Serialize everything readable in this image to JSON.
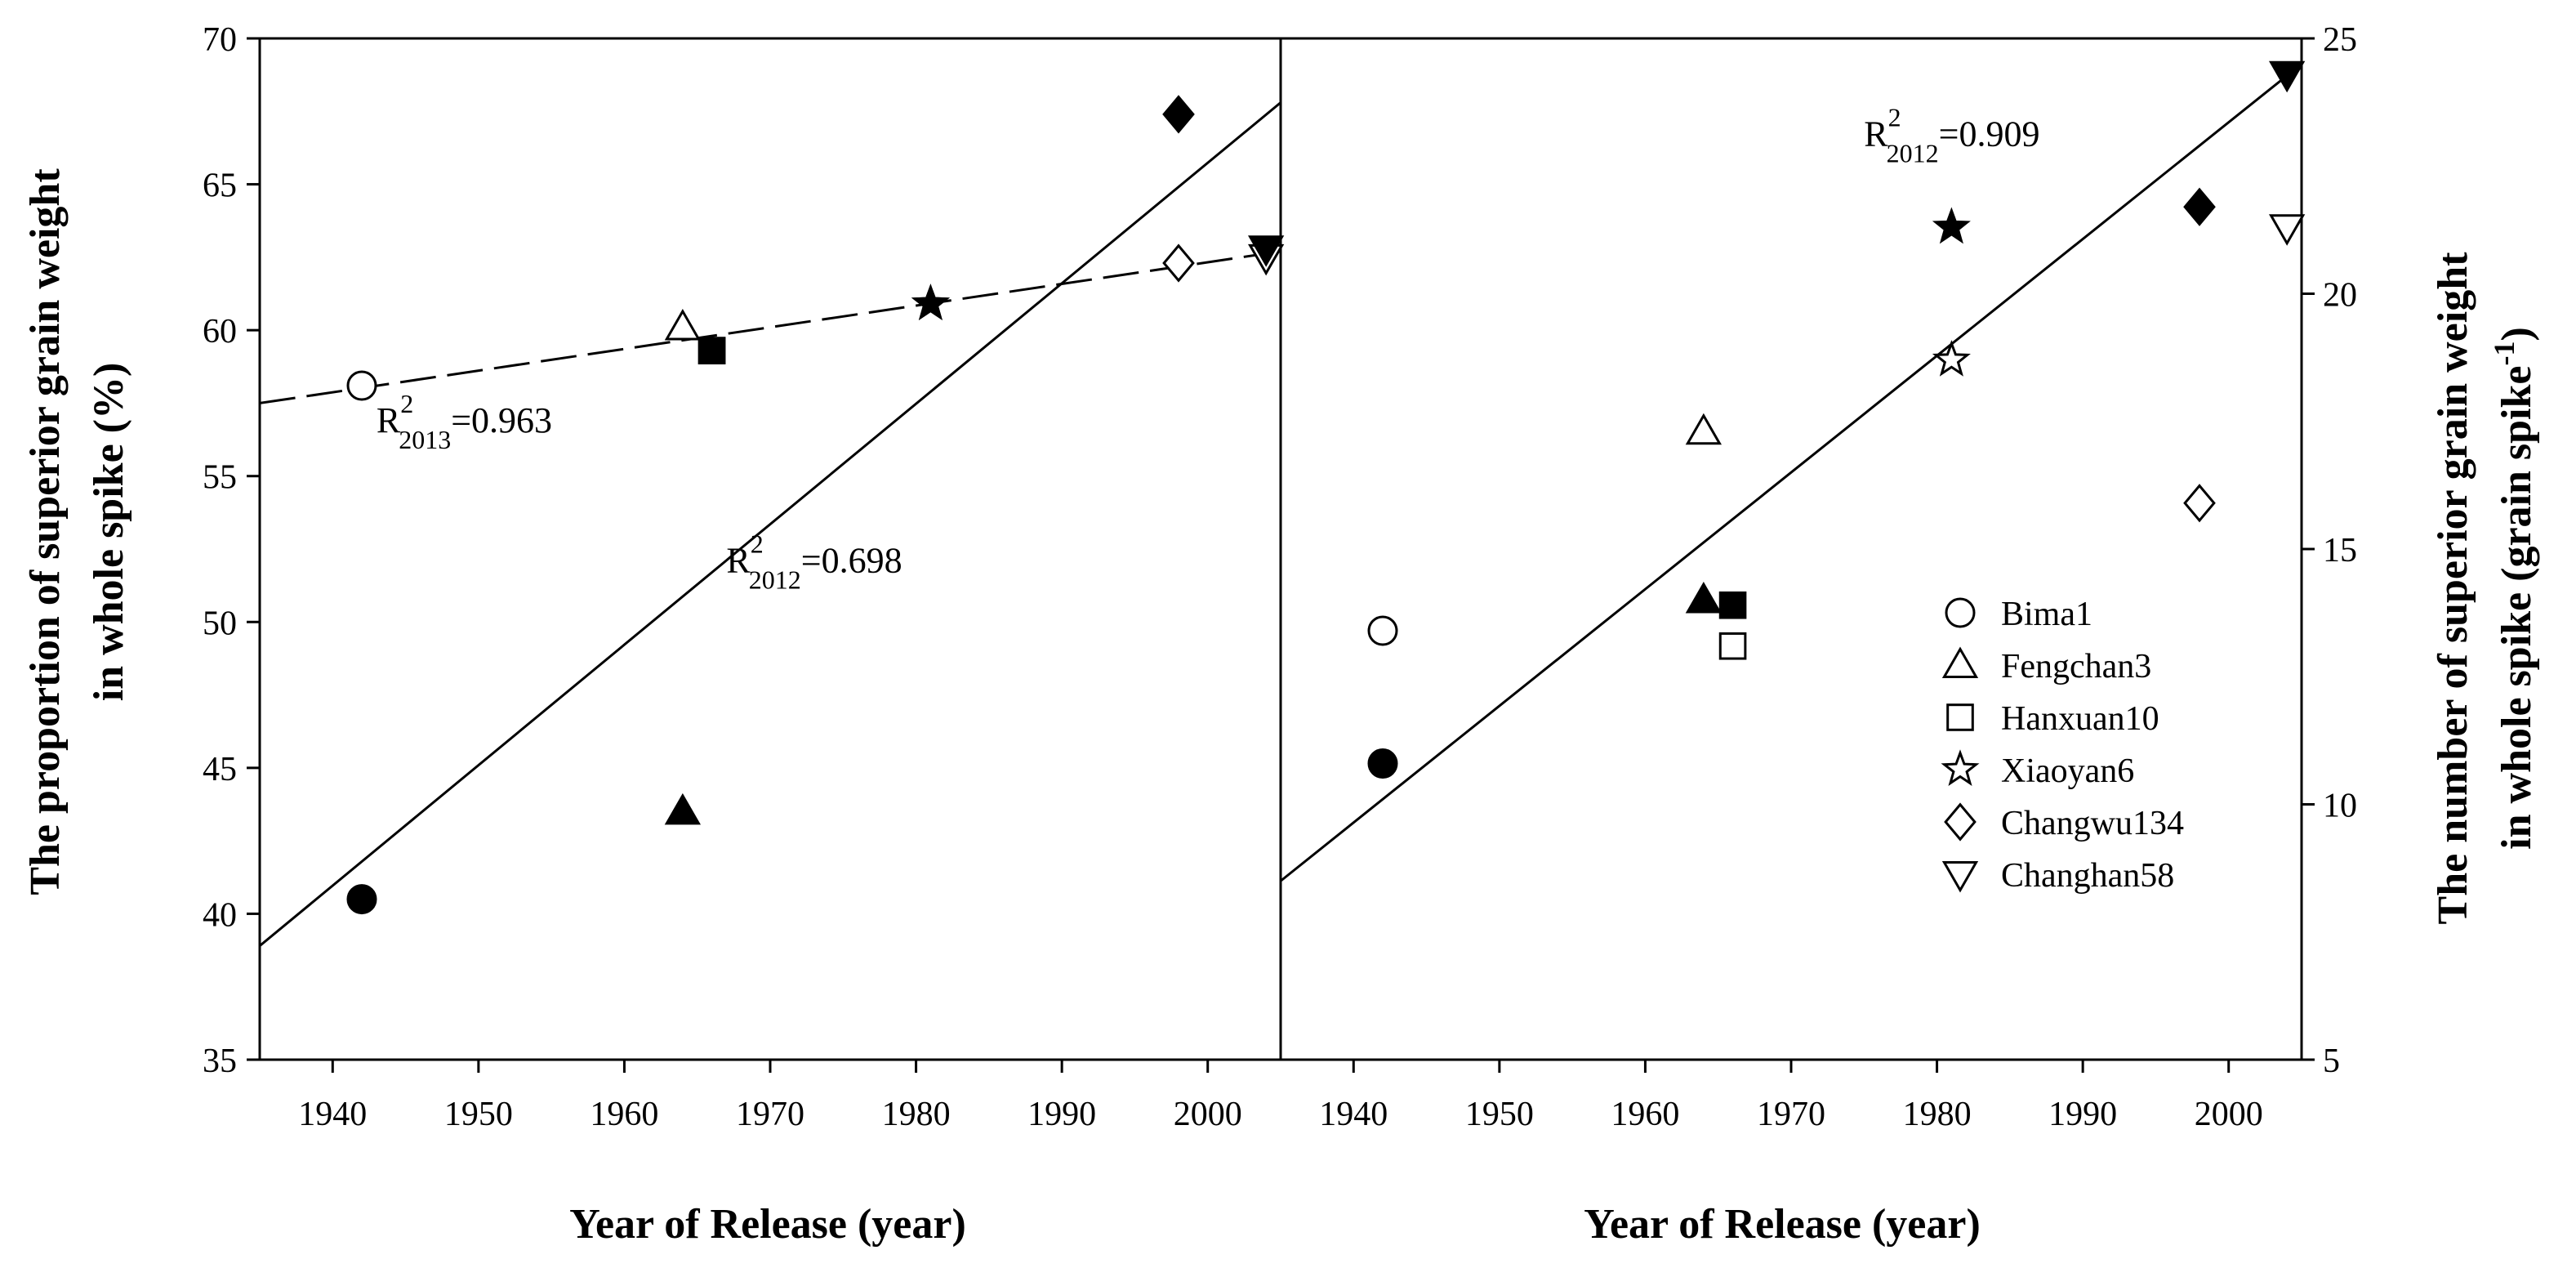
{
  "chart_data": [
    {
      "type": "scatter",
      "panel": "left",
      "xlabel": "Year of Release (year)",
      "ylabel_line1": "The proportion of superior grain weight",
      "ylabel_line2": "in whole spike (%)",
      "xlim": [
        1935,
        2005
      ],
      "ylim": [
        35,
        70
      ],
      "xticks": [
        "1940",
        "1950",
        "1960",
        "1970",
        "1980",
        "1990",
        "2000"
      ],
      "yticks": [
        "35",
        "40",
        "45",
        "50",
        "55",
        "60",
        "65",
        "70"
      ],
      "y_axis_side": "left",
      "series": [
        {
          "year": "2013",
          "fill": "open",
          "points": [
            {
              "cultivar": "Bima1",
              "marker": "circle",
              "x": 1942,
              "y": 58.1
            },
            {
              "cultivar": "Fengchan3",
              "marker": "triangle-up",
              "x": 1964,
              "y": 60.1
            },
            {
              "cultivar": "Hanxuan10",
              "marker": "square",
              "x": 1966,
              "y": 59.3
            },
            {
              "cultivar": "Xiaoyan6",
              "marker": "star",
              "x": 1981,
              "y": 60.9
            },
            {
              "cultivar": "Changwu134",
              "marker": "diamond",
              "x": 1998,
              "y": 62.3
            },
            {
              "cultivar": "Changhan58",
              "marker": "triangle-down",
              "x": 2004,
              "y": 62.5
            }
          ],
          "fit": {
            "style": "dashed",
            "x": [
              1935,
              2005
            ],
            "y": [
              57.5,
              62.7
            ]
          }
        },
        {
          "year": "2012",
          "fill": "solid",
          "points": [
            {
              "cultivar": "Bima1",
              "marker": "circle",
              "x": 1942,
              "y": 40.5
            },
            {
              "cultivar": "Fengchan3",
              "marker": "triangle-up",
              "x": 1964,
              "y": 43.5
            },
            {
              "cultivar": "Hanxuan10",
              "marker": "square",
              "x": 1966,
              "y": 59.3
            },
            {
              "cultivar": "Xiaoyan6",
              "marker": "star",
              "x": 1981,
              "y": 60.9
            },
            {
              "cultivar": "Changwu134",
              "marker": "diamond",
              "x": 1998,
              "y": 67.4
            },
            {
              "cultivar": "Changhan58",
              "marker": "triangle-down",
              "x": 2004,
              "y": 62.8
            }
          ],
          "fit": {
            "style": "solid",
            "x": [
              1935,
              2005
            ],
            "y": [
              38.9,
              67.8
            ]
          }
        }
      ],
      "annotations": [
        {
          "base": "R",
          "sup": "2",
          "sub": "2013",
          "value": "=0.963",
          "at": [
            1943,
            56.5
          ]
        },
        {
          "base": "R",
          "sup": "2",
          "sub": "2012",
          "value": "=0.698",
          "at": [
            1967,
            51.7
          ]
        }
      ]
    },
    {
      "type": "scatter",
      "panel": "right",
      "xlabel": "Year of Release (year)",
      "ylabel_line1": "The number of superior grain weight",
      "ylabel_line2_pre": "in whole spike (grain spike",
      "ylabel_line2_sup": "-1",
      "ylabel_line2_post": ")",
      "xlim": [
        1935,
        2005
      ],
      "ylim": [
        5,
        25
      ],
      "xticks": [
        "1940",
        "1950",
        "1960",
        "1970",
        "1980",
        "1990",
        "2000"
      ],
      "yticks": [
        "5",
        "10",
        "15",
        "20",
        "25"
      ],
      "y_axis_side": "right",
      "series": [
        {
          "year": "2013",
          "fill": "open",
          "points": [
            {
              "cultivar": "Bima1",
              "marker": "circle",
              "x": 1942,
              "y": 13.4
            },
            {
              "cultivar": "Fengchan3",
              "marker": "triangle-up",
              "x": 1964,
              "y": 17.3
            },
            {
              "cultivar": "Hanxuan10",
              "marker": "square",
              "x": 1966,
              "y": 13.1
            },
            {
              "cultivar": "Xiaoyan6",
              "marker": "star",
              "x": 1981,
              "y": 18.7
            },
            {
              "cultivar": "Changwu134",
              "marker": "diamond",
              "x": 1998,
              "y": 15.9
            },
            {
              "cultivar": "Changhan58",
              "marker": "triangle-down",
              "x": 2004,
              "y": 21.3
            }
          ]
        },
        {
          "year": "2012",
          "fill": "solid",
          "points": [
            {
              "cultivar": "Bima1",
              "marker": "circle",
              "x": 1942,
              "y": 10.8
            },
            {
              "cultivar": "Fengchan3",
              "marker": "triangle-up",
              "x": 1964,
              "y": 14.0
            },
            {
              "cultivar": "Hanxuan10",
              "marker": "square",
              "x": 1966,
              "y": 13.9
            },
            {
              "cultivar": "Xiaoyan6",
              "marker": "star",
              "x": 1981,
              "y": 21.3
            },
            {
              "cultivar": "Changwu134",
              "marker": "diamond",
              "x": 1998,
              "y": 21.7
            },
            {
              "cultivar": "Changhan58",
              "marker": "triangle-down",
              "x": 2004,
              "y": 24.3
            }
          ],
          "fit": {
            "style": "solid",
            "x": [
              1935,
              2005
            ],
            "y": [
              8.5,
              24.5
            ]
          }
        }
      ],
      "annotations": [
        {
          "base": "R",
          "sup": "2",
          "sub": "2012",
          "value": "=0.909",
          "at": [
            1975,
            22.9
          ]
        }
      ],
      "legend": {
        "placement": "lower-right",
        "entries": [
          {
            "marker": "circle",
            "label": "Bima1"
          },
          {
            "marker": "triangle-up",
            "label": "Fengchan3"
          },
          {
            "marker": "square",
            "label": "Hanxuan10"
          },
          {
            "marker": "star",
            "label": "Xiaoyan6"
          },
          {
            "marker": "diamond",
            "label": "Changwu134"
          },
          {
            "marker": "triangle-down",
            "label": "Changhan58"
          }
        ]
      }
    }
  ]
}
